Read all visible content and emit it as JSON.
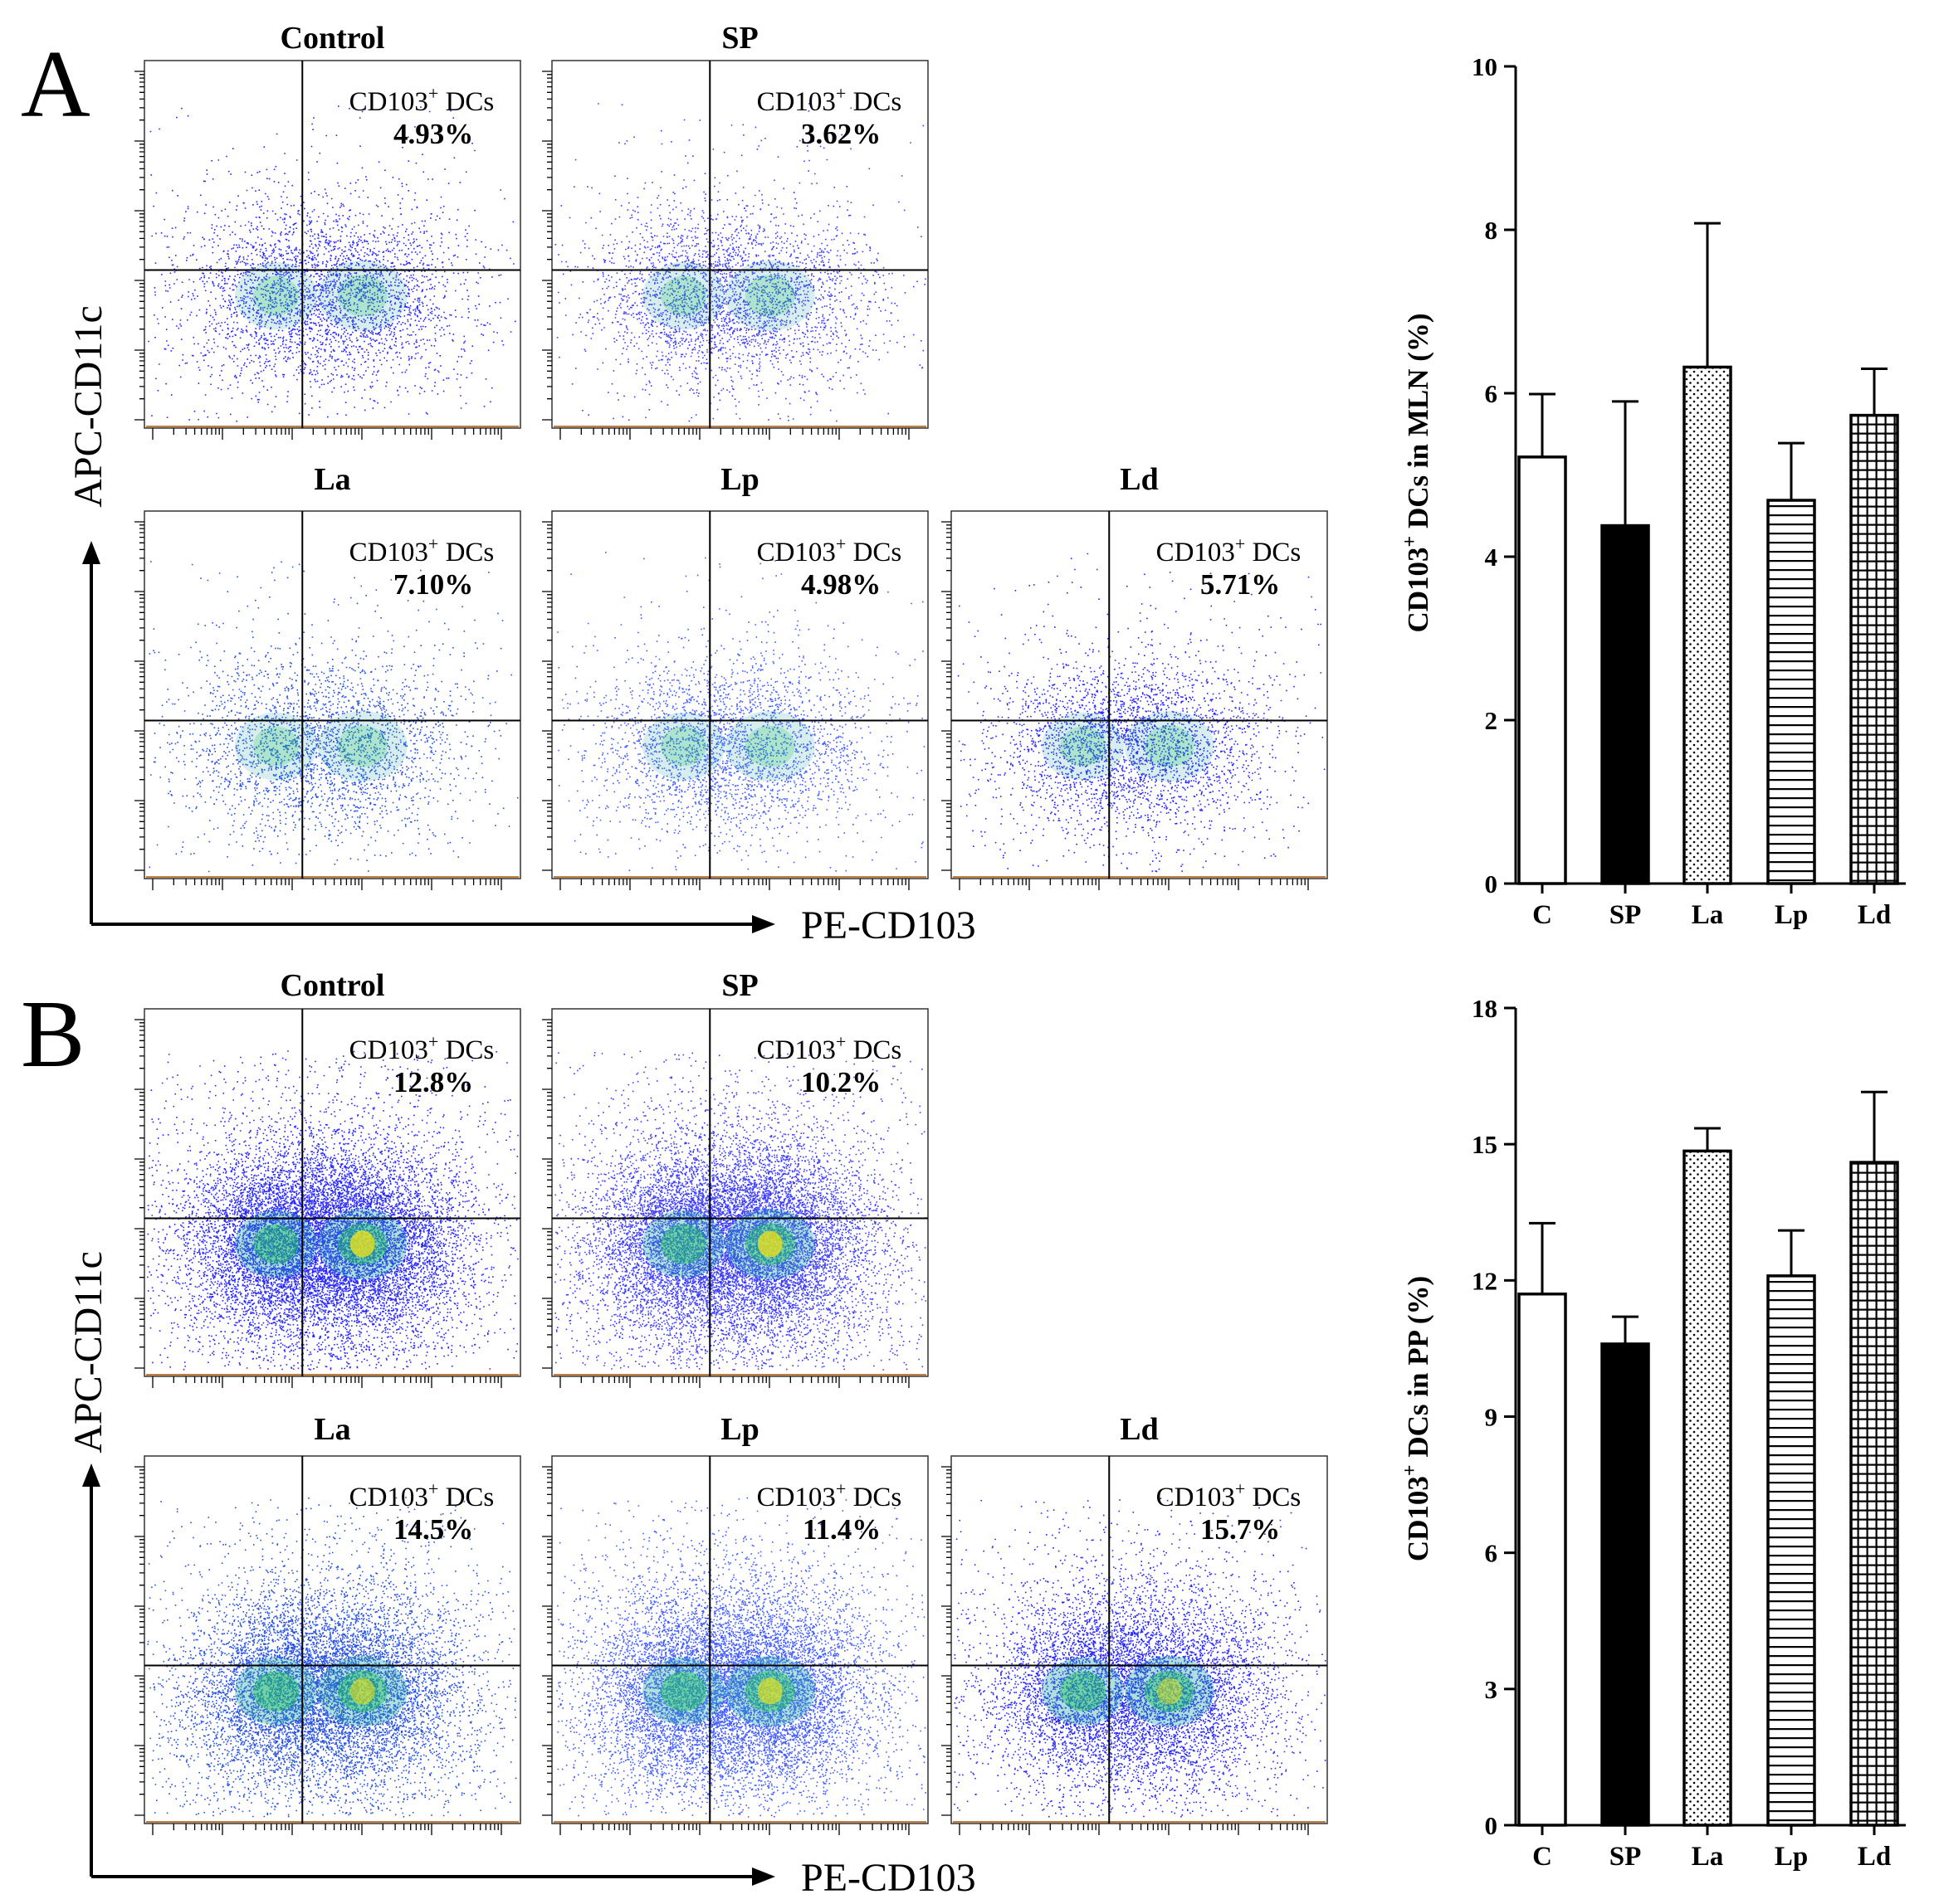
{
  "panels": [
    {
      "letter": "A",
      "x_axis_label": "PE-CD103",
      "y_axis_label": "APC-CD11c",
      "gate_label": "CD103",
      "gate_label_sup": "+",
      "gate_label_suffix": " DCs",
      "plots": [
        {
          "title": "Control",
          "value": "4.93%",
          "density": 0.18
        },
        {
          "title": "SP",
          "value": "3.62%",
          "density": 0.16
        },
        {
          "title": "La",
          "value": "7.10%",
          "density": 0.13
        },
        {
          "title": "Lp",
          "value": "4.98%",
          "density": 0.14
        },
        {
          "title": "Ld",
          "value": "5.71%",
          "density": 0.17
        }
      ]
    },
    {
      "letter": "B",
      "x_axis_label": "PE-CD103",
      "y_axis_label": "APC-CD11c",
      "gate_label": "CD103",
      "gate_label_sup": "+",
      "gate_label_suffix": " DCs",
      "plots": [
        {
          "title": "Control",
          "value": "12.8%",
          "density": 1.0
        },
        {
          "title": "SP",
          "value": "10.2%",
          "density": 1.0
        },
        {
          "title": "La",
          "value": "14.5%",
          "density": 0.75
        },
        {
          "title": "Lp",
          "value": "11.4%",
          "density": 0.85
        },
        {
          "title": "Ld",
          "value": "15.7%",
          "density": 0.6
        }
      ]
    }
  ],
  "chart_data": [
    {
      "type": "bar",
      "categories": [
        "C",
        "SP",
        "La",
        "Lp",
        "Ld"
      ],
      "values": [
        5.22,
        4.38,
        6.32,
        4.69,
        5.73
      ],
      "errors": [
        0.77,
        1.52,
        1.76,
        0.7,
        0.57
      ],
      "ylabel_pre": "CD103",
      "ylabel_sup": "+",
      "ylabel_post": " DCs in MLN (%)",
      "ylim": [
        0,
        10
      ],
      "yticks": [
        "0",
        "2",
        "4",
        "6",
        "8",
        "10"
      ],
      "patterns": [
        "none",
        "solid",
        "dots",
        "hlines",
        "grid"
      ]
    },
    {
      "type": "bar",
      "categories": [
        "C",
        "SP",
        "La",
        "Lp",
        "Ld"
      ],
      "values": [
        11.7,
        10.6,
        14.85,
        12.1,
        14.6
      ],
      "errors": [
        1.56,
        0.6,
        0.5,
        1.0,
        1.55
      ],
      "ylabel_pre": "CD103",
      "ylabel_sup": "+",
      "ylabel_post": " DCs in PP (%)",
      "ylim": [
        0,
        18
      ],
      "yticks": [
        "0",
        "3",
        "6",
        "9",
        "12",
        "15",
        "18"
      ],
      "patterns": [
        "none",
        "solid",
        "dots",
        "hlines",
        "grid"
      ]
    }
  ]
}
